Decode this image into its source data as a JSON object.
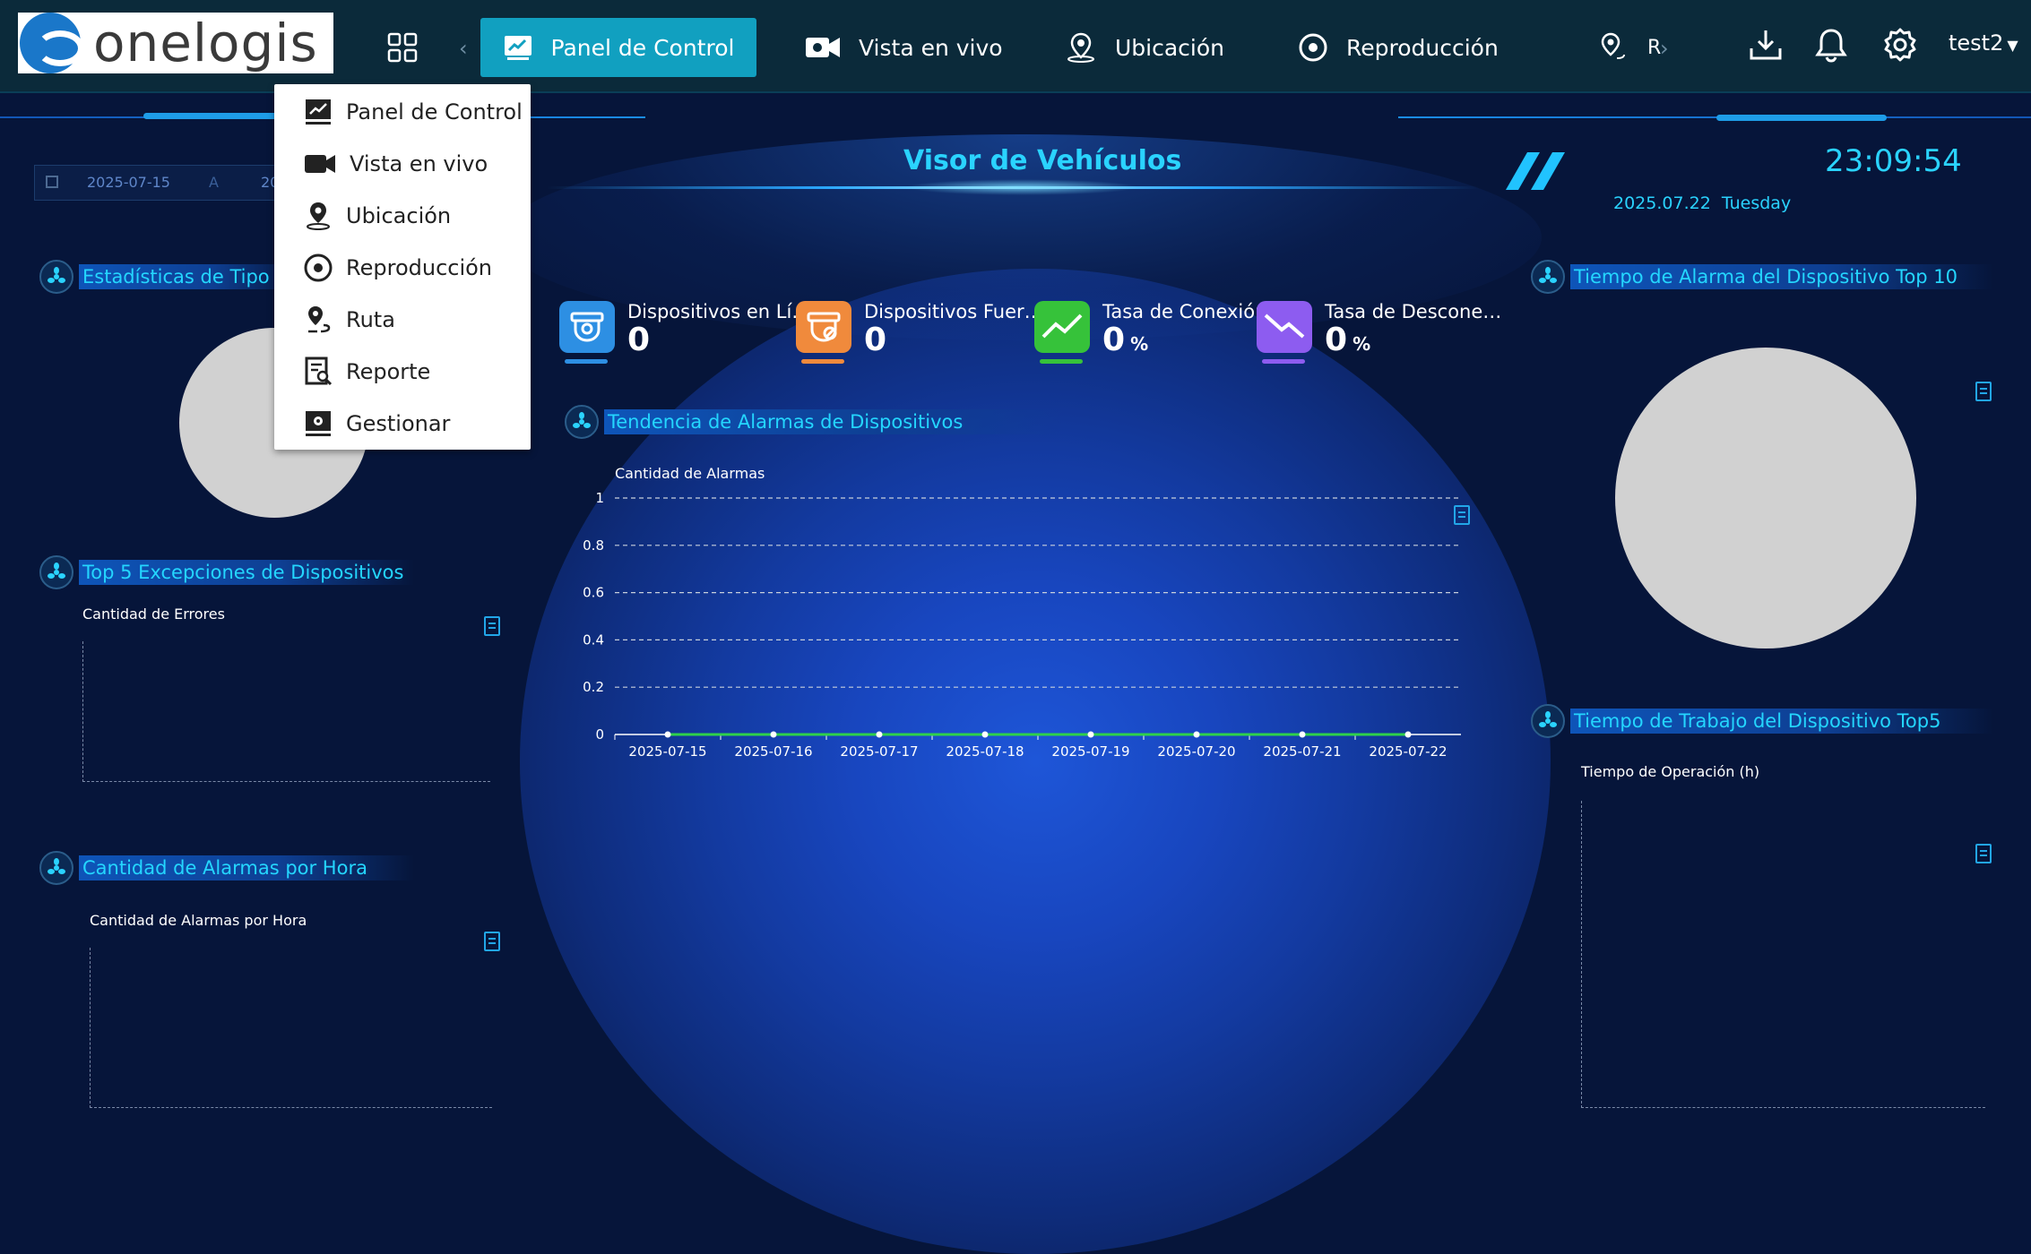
{
  "app": {
    "logo_text": "onelogis",
    "user": "test2"
  },
  "nav": {
    "items": [
      {
        "label": "Panel de Control"
      },
      {
        "label": "Vista en vivo"
      },
      {
        "label": "Ubicación"
      },
      {
        "label": "Reproducción"
      },
      {
        "label": "R"
      }
    ]
  },
  "dropdown": {
    "items": [
      "Panel de Control",
      "Vista en vivo",
      "Ubicación",
      "Reproducción",
      "Ruta",
      "Reporte",
      "Gestionar"
    ]
  },
  "header": {
    "title": "Visor de Vehículos",
    "time": "23:09:54",
    "date": "2025.07.22",
    "weekday": "Tuesday",
    "date_from": "2025-07-15",
    "date_sep": "A",
    "date_to_partial": "20"
  },
  "left": {
    "panel1_title": "Estadísticas de Tipo de",
    "panel2_title": "Top 5 Excepciones de Dispositivos",
    "panel2_label": "Cantidad de Errores",
    "panel3_title": "Cantidad de Alarmas por Hora",
    "panel3_label": "Cantidad de Alarmas por Hora"
  },
  "stats": [
    {
      "label": "Dispositivos en Lí…",
      "value": "0",
      "unit": "",
      "color": "#2d8fe3"
    },
    {
      "label": "Dispositivos Fuer…",
      "value": "0",
      "unit": "",
      "color": "#f08a3c"
    },
    {
      "label": "Tasa de Conexión",
      "value": "0",
      "unit": "%",
      "color": "#36c23a"
    },
    {
      "label": "Tasa de Descone…",
      "value": "0",
      "unit": "%",
      "color": "#8d5cf0"
    }
  ],
  "center": {
    "panel_title": "Tendencia de Alarmas de Dispositivos"
  },
  "right": {
    "panel1_title": "Tiempo de Alarma del Dispositivo Top 10",
    "panel2_title": "Tiempo de Trabajo del Dispositivo Top5",
    "panel2_label": "Tiempo de Operación (h)"
  },
  "chart_data": {
    "type": "line",
    "title": "",
    "ylabel": "Cantidad de Alarmas",
    "xlabel": "",
    "x": [
      "2025-07-15",
      "2025-07-16",
      "2025-07-17",
      "2025-07-18",
      "2025-07-19",
      "2025-07-20",
      "2025-07-21",
      "2025-07-22"
    ],
    "series": [
      {
        "values": [
          0,
          0,
          0,
          0,
          0,
          0,
          0,
          0
        ],
        "color": "#2fd14a"
      }
    ],
    "ylim": [
      0,
      1
    ],
    "yticks": [
      "0",
      "0.2",
      "0.4",
      "0.6",
      "0.8",
      "1"
    ],
    "grid": true
  }
}
